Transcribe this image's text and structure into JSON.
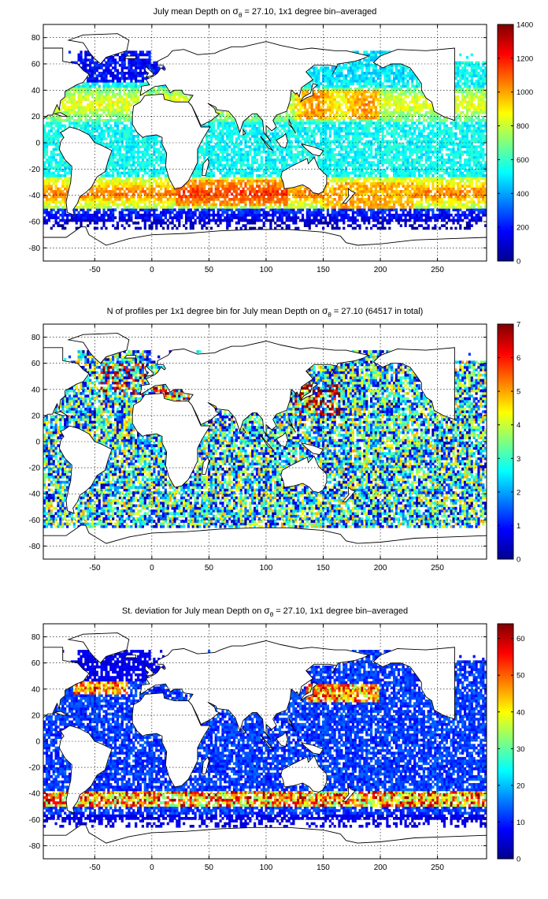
{
  "chart_data": [
    {
      "type": "heatmap",
      "title_prefix": "July mean Depth on",
      "title_symbol": "σ",
      "title_subscript": "θ",
      "title_suffix": " = 27.10, 1x1 degree bin–averaged",
      "xlabel": "",
      "ylabel": "",
      "xlim": [
        -95,
        293
      ],
      "ylim": [
        -90,
        90
      ],
      "xticks": [
        -50,
        0,
        50,
        100,
        150,
        200,
        250
      ],
      "xtick_labels": [
        "-50",
        "0",
        "50",
        "100",
        "150",
        "200",
        "250"
      ],
      "yticks": [
        80,
        60,
        40,
        20,
        0,
        -20,
        -40,
        -60,
        -80
      ],
      "ytick_labels": [
        "80",
        "60",
        "40",
        "20",
        "0",
        "-20",
        "-40",
        "-60",
        "-80"
      ],
      "grid": true,
      "colorbar": {
        "min": 0,
        "max": 1400,
        "ticks": [
          1400,
          1200,
          1000,
          800,
          600,
          400,
          200,
          0
        ],
        "tick_labels": [
          "1400",
          "1200",
          "1000",
          "800",
          "600",
          "400",
          "200",
          "0"
        ],
        "colormap": "jet"
      },
      "description_values": {
        "north_atlantic_subpolar": 150,
        "subtropical_gyres": 550,
        "southern_ocean_band": 1050,
        "tropics": 450,
        "antarctic_margin": 100
      }
    },
    {
      "type": "heatmap",
      "title_prefix": "N of profiles per 1x1 degree bin for July mean Depth on",
      "title_symbol": "σ",
      "title_subscript": "θ",
      "title_suffix": " = 27.10 (64517 in total)",
      "xlabel": "",
      "ylabel": "",
      "xlim": [
        -95,
        293
      ],
      "ylim": [
        -90,
        90
      ],
      "xticks": [
        -50,
        0,
        50,
        100,
        150,
        200,
        250
      ],
      "xtick_labels": [
        "-50",
        "0",
        "50",
        "100",
        "150",
        "200",
        "250"
      ],
      "yticks": [
        80,
        60,
        40,
        20,
        0,
        -20,
        -40,
        -60,
        -80
      ],
      "ytick_labels": [
        "80",
        "60",
        "40",
        "20",
        "0",
        "-20",
        "-40",
        "-60",
        "-80"
      ],
      "grid": true,
      "colorbar": {
        "min": 0,
        "max": 7,
        "ticks": [
          7,
          6,
          5,
          4,
          3,
          2,
          1,
          0
        ],
        "tick_labels": [
          "7",
          "6",
          "5",
          "4",
          "3",
          "2",
          "1",
          "0"
        ],
        "colormap": "jet"
      },
      "total_profiles": 64517
    },
    {
      "type": "heatmap",
      "title_prefix": "St. deviation for July mean Depth on",
      "title_symbol": "σ",
      "title_subscript": "θ",
      "title_suffix": " = 27.10, 1x1 degree bin–averaged",
      "xlabel": "",
      "ylabel": "",
      "xlim": [
        -95,
        293
      ],
      "ylim": [
        -90,
        90
      ],
      "xticks": [
        -50,
        0,
        50,
        100,
        150,
        200,
        250
      ],
      "xtick_labels": [
        "-50",
        "0",
        "50",
        "100",
        "150",
        "200",
        "250"
      ],
      "yticks": [
        80,
        60,
        40,
        20,
        0,
        -20,
        -40,
        -60,
        -80
      ],
      "ytick_labels": [
        "80",
        "60",
        "40",
        "20",
        "0",
        "-20",
        "-40",
        "-60",
        "-80"
      ],
      "grid": true,
      "colorbar": {
        "min": 0,
        "max": 64,
        "ticks": [
          60,
          50,
          40,
          30,
          20,
          10,
          0
        ],
        "tick_labels": [
          "60",
          "50",
          "40",
          "30",
          "20",
          "10",
          "0"
        ],
        "colormap": "jet"
      }
    }
  ],
  "colors": {
    "land": "#ffffff",
    "coast": "#000000",
    "grid": "#000000",
    "background": "#ffffff"
  }
}
